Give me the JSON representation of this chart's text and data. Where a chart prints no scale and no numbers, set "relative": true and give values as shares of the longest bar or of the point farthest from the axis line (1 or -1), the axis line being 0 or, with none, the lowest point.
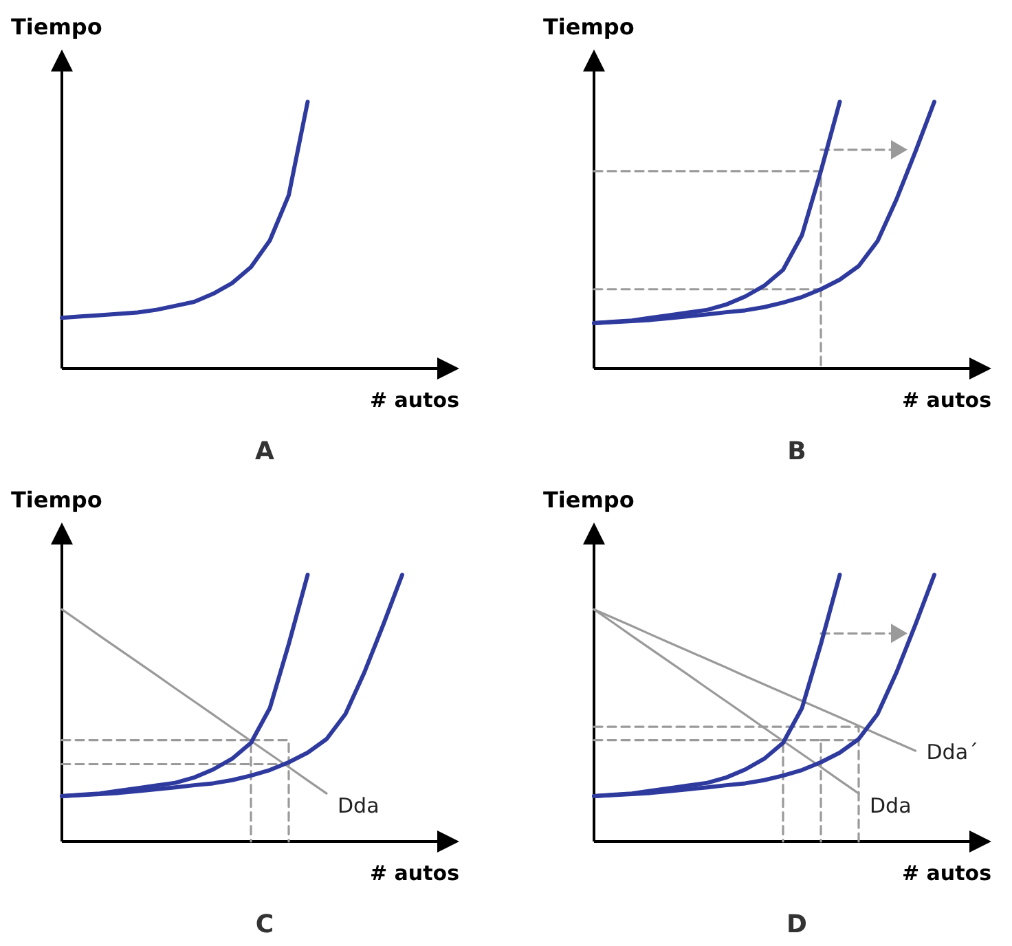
{
  "chart_data": [
    {
      "type": "line",
      "title": "A",
      "xlabel": "# autos",
      "ylabel": "Tiempo",
      "relative": true,
      "categories": [
        null,
        null,
        null,
        null,
        null,
        null,
        null,
        null,
        null,
        null,
        null,
        null,
        null,
        null,
        null,
        null,
        null,
        null,
        null,
        null,
        null
      ],
      "series": [
        {
          "color": "#2e3a9e",
          "values": [
            0.19,
            0.195,
            0.2,
            0.205,
            0.21,
            0.22,
            0.235,
            0.25,
            0.28,
            0.32,
            0.38,
            0.48,
            0.65,
            1.0,
            null,
            null,
            null,
            null,
            null,
            null,
            null
          ]
        }
      ]
    },
    {
      "type": "line",
      "title": "B",
      "xlabel": "# autos",
      "ylabel": "Tiempo",
      "relative": true,
      "categories": [
        null,
        null,
        null,
        null,
        null,
        null,
        null,
        null,
        null,
        null,
        null,
        null,
        null,
        null,
        null,
        null,
        null,
        null,
        null,
        null,
        null
      ],
      "series": [
        {
          "type": "step",
          "color": "#9a9a9a",
          "line_style": "dashed",
          "values": [
            0.74,
            0.74,
            0.74,
            0.74,
            0.74,
            0.74,
            0.74,
            0.74,
            0.74,
            0.74,
            0.74,
            0.74,
            0,
            null,
            null,
            null,
            null,
            null,
            null,
            null,
            null
          ]
        },
        {
          "type": "step",
          "color": "#9a9a9a",
          "line_style": "dashed",
          "values": [
            0.297,
            0.297,
            0.297,
            0.297,
            0.297,
            0.297,
            0.297,
            0.297,
            0.297,
            0.297,
            0.297,
            0.297,
            0.297,
            null,
            null,
            null,
            null,
            null,
            null,
            null,
            null
          ]
        },
        {
          "color": "#9a9a9a",
          "line_style": "dashed",
          "values": [
            null,
            null,
            null,
            null,
            null,
            null,
            null,
            null,
            null,
            null,
            null,
            null,
            0.82,
            0.82,
            0.82,
            0.82,
            0.82,
            null,
            null,
            null,
            null
          ]
        },
        {
          "color": "#2e3a9e",
          "values": [
            0.17,
            0.175,
            0.18,
            0.19,
            0.2,
            0.21,
            0.22,
            0.24,
            0.27,
            0.31,
            0.37,
            0.5,
            0.74,
            1.0,
            null,
            null,
            null,
            null,
            null,
            null,
            null
          ]
        },
        {
          "color": "#2e3a9e",
          "values": [
            0.17,
            0.174,
            0.178,
            0.182,
            0.189,
            0.196,
            0.203,
            0.211,
            0.218,
            0.23,
            0.247,
            0.268,
            0.297,
            0.333,
            0.384,
            0.478,
            0.634,
            0.813,
            1.0,
            null,
            null
          ]
        }
      ]
    },
    {
      "type": "line",
      "title": "C",
      "xlabel": "# autos",
      "ylabel": "Tiempo",
      "relative": true,
      "categories": [
        null,
        null,
        null,
        null,
        null,
        null,
        null,
        null,
        null,
        null,
        null,
        null,
        null,
        null,
        null,
        null,
        null,
        null,
        null,
        null,
        null
      ],
      "series": [
        {
          "type": "step",
          "color": "#9a9a9a",
          "line_style": "dashed",
          "values": [
            0.38,
            0.38,
            0.38,
            0.38,
            0.38,
            0.38,
            0.38,
            0.38,
            0.38,
            0.38,
            0,
            null,
            null,
            null,
            null,
            null,
            null,
            null,
            null,
            null,
            null
          ]
        },
        {
          "type": "step",
          "color": "#9a9a9a",
          "line_style": "dashed",
          "values": [
            null,
            null,
            null,
            null,
            null,
            null,
            null,
            null,
            null,
            null,
            0.38,
            0.38,
            0,
            null,
            null,
            null,
            null,
            null,
            null,
            null,
            null
          ]
        },
        {
          "type": "step",
          "color": "#9a9a9a",
          "line_style": "dashed",
          "values": [
            0.29,
            0.29,
            0.29,
            0.29,
            0.29,
            0.29,
            0.29,
            0.29,
            0.29,
            0.29,
            0.29,
            0.29,
            0.29,
            null,
            null,
            null,
            null,
            null,
            null,
            null,
            null
          ]
        },
        {
          "name": "Dda",
          "color": "#9a9a9a",
          "values": [
            0.87,
            0.821,
            0.771,
            0.722,
            0.673,
            0.624,
            0.574,
            0.525,
            0.476,
            0.426,
            0.377,
            0.328,
            0.279,
            0.229,
            0.18,
            null,
            null,
            null,
            null,
            null,
            null
          ]
        },
        {
          "color": "#2e3a9e",
          "values": [
            0.17,
            0.175,
            0.18,
            0.19,
            0.2,
            0.21,
            0.22,
            0.24,
            0.27,
            0.31,
            0.37,
            0.5,
            0.74,
            1.0,
            null,
            null,
            null,
            null,
            null,
            null,
            null
          ]
        },
        {
          "color": "#2e3a9e",
          "values": [
            0.17,
            0.174,
            0.178,
            0.182,
            0.189,
            0.196,
            0.203,
            0.211,
            0.218,
            0.23,
            0.247,
            0.268,
            0.297,
            0.333,
            0.384,
            0.478,
            0.634,
            0.813,
            1.0,
            null,
            null
          ]
        }
      ]
    },
    {
      "type": "line",
      "title": "D",
      "xlabel": "# autos",
      "ylabel": "Tiempo",
      "relative": true,
      "categories": [
        null,
        null,
        null,
        null,
        null,
        null,
        null,
        null,
        null,
        null,
        null,
        null,
        null,
        null,
        null,
        null,
        null,
        null,
        null,
        null,
        null
      ],
      "series": [
        {
          "type": "step",
          "color": "#9a9a9a",
          "line_style": "dashed",
          "values": [
            0.43,
            0.43,
            0.43,
            0.43,
            0.43,
            0.43,
            0.43,
            0.43,
            0.43,
            0.43,
            0.43,
            0.43,
            0.43,
            0.43,
            0,
            null,
            null,
            null,
            null,
            null,
            null
          ]
        },
        {
          "type": "step",
          "color": "#9a9a9a",
          "line_style": "dashed",
          "values": [
            0.38,
            0.38,
            0.38,
            0.38,
            0.38,
            0.38,
            0.38,
            0.38,
            0.38,
            0.38,
            0,
            null,
            null,
            null,
            null,
            null,
            null,
            null,
            null,
            null,
            null
          ]
        },
        {
          "type": "step",
          "color": "#9a9a9a",
          "line_style": "dashed",
          "values": [
            null,
            null,
            null,
            null,
            null,
            null,
            null,
            null,
            null,
            null,
            0.38,
            0.38,
            0,
            null,
            null,
            null,
            null,
            null,
            null,
            null,
            null
          ]
        },
        {
          "type": "step",
          "color": "#9a9a9a",
          "line_style": "dashed",
          "values": [
            null,
            null,
            null,
            null,
            null,
            null,
            null,
            null,
            null,
            null,
            null,
            null,
            0.38,
            0.38,
            0.38,
            null,
            null,
            null,
            null,
            null,
            null
          ]
        },
        {
          "color": "#9a9a9a",
          "line_style": "dashed",
          "values": [
            null,
            null,
            null,
            null,
            null,
            null,
            null,
            null,
            null,
            null,
            null,
            null,
            0.78,
            0.78,
            0.78,
            0.78,
            0.78,
            null,
            null,
            null,
            null
          ]
        },
        {
          "name": "Dda",
          "color": "#9a9a9a",
          "values": [
            0.87,
            0.821,
            0.771,
            0.722,
            0.673,
            0.624,
            0.574,
            0.525,
            0.476,
            0.426,
            0.377,
            0.328,
            0.279,
            0.229,
            0.18,
            null,
            null,
            null,
            null,
            null,
            null
          ]
        },
        {
          "name": "Dda´",
          "color": "#9a9a9a",
          "values": [
            0.87,
            0.839,
            0.808,
            0.776,
            0.745,
            0.714,
            0.683,
            0.652,
            0.62,
            0.589,
            0.558,
            0.527,
            0.496,
            0.465,
            0.434,
            0.402,
            0.371,
            0.34,
            null,
            null,
            null
          ]
        },
        {
          "color": "#2e3a9e",
          "values": [
            0.17,
            0.175,
            0.18,
            0.19,
            0.2,
            0.21,
            0.22,
            0.24,
            0.27,
            0.31,
            0.37,
            0.5,
            0.74,
            1.0,
            null,
            null,
            null,
            null,
            null,
            null,
            null
          ]
        },
        {
          "color": "#2e3a9e",
          "values": [
            0.17,
            0.174,
            0.178,
            0.182,
            0.189,
            0.196,
            0.203,
            0.211,
            0.218,
            0.23,
            0.247,
            0.268,
            0.297,
            0.333,
            0.384,
            0.478,
            0.634,
            0.813,
            1.0,
            null,
            null
          ]
        }
      ]
    }
  ]
}
